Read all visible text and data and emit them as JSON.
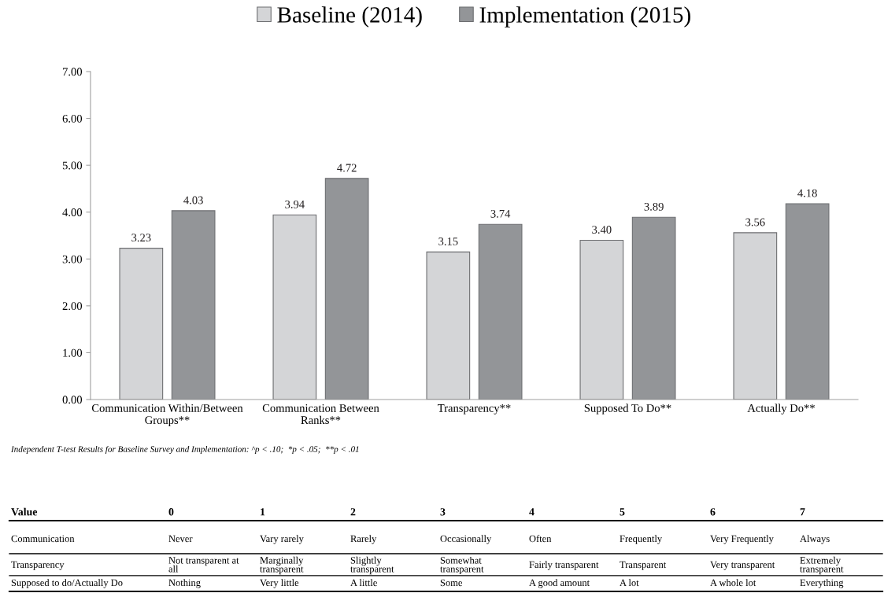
{
  "chart_data": {
    "type": "bar",
    "categories": [
      "Communication Within/Between\nGroups**",
      "Communication Between\nRanks**",
      "Transparency**",
      "Supposed To Do**",
      "Actually Do**"
    ],
    "series": [
      {
        "name": "Baseline (2014)",
        "color": "#d4d5d7",
        "values": [
          3.23,
          3.94,
          3.15,
          3.4,
          3.56
        ],
        "value_labels": [
          "3.23",
          "3.94",
          "3.15",
          "3.40",
          "3.56"
        ]
      },
      {
        "name": "Implementation (2015)",
        "color": "#939598",
        "values": [
          4.03,
          4.72,
          3.74,
          3.89,
          4.18
        ],
        "value_labels": [
          "4.03",
          "4.72",
          "3.74",
          "3.89",
          "4.18"
        ]
      }
    ],
    "ylim": [
      0,
      7
    ],
    "yticks": [
      {
        "value": 0,
        "label": "0.00"
      },
      {
        "value": 1,
        "label": "1.00"
      },
      {
        "value": 2,
        "label": "2.00"
      },
      {
        "value": 3,
        "label": "3.00"
      },
      {
        "value": 4,
        "label": "4.00"
      },
      {
        "value": 5,
        "label": "5.00"
      },
      {
        "value": 6,
        "label": "6.00"
      },
      {
        "value": 7,
        "label": "7.00"
      }
    ],
    "grid": false,
    "legend": "top",
    "annotations": [
      "Independent T-test Results for Baseline Survey and Implementation: ^p < .10;  *p < .05;  **p < .01",
      "Value",
      "0",
      "1",
      "2",
      "3",
      "4",
      "5",
      "6",
      "7",
      "Communication",
      "Never",
      "Vary rarely",
      "Rarely",
      "Occasionally",
      "Often",
      "Frequently",
      "Very Frequently",
      "Always",
      "Transparency",
      "Not transparent at\nall",
      "Marginally\ntransparent",
      "Slightly\ntransparent",
      "Somewhat\ntransparent",
      "Fairly transparent",
      "Transparent",
      "Very transparent",
      "Extremely\ntransparent",
      "Supposed to do/Actually Do",
      "Nothing",
      "Very little",
      "A little",
      "Some",
      "A good amount",
      "A lot",
      "A whole lot",
      "Everything"
    ]
  }
}
